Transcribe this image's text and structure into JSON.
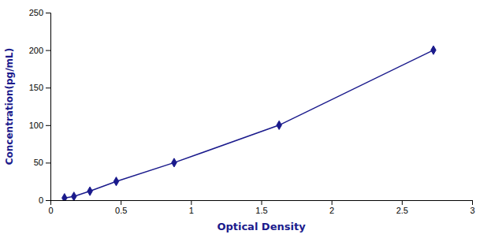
{
  "chart_data": {
    "type": "line",
    "x": [
      0.1,
      0.167,
      0.281,
      0.468,
      0.88,
      1.627,
      2.725
    ],
    "values": [
      3,
      5,
      12,
      25,
      50,
      100,
      200
    ],
    "color": "#1a1a8c",
    "marker": "diamond",
    "line_style": "solid",
    "xlabel": "Optical Density",
    "ylabel": "Concentration(pg/mL)",
    "xlim": [
      0,
      3
    ],
    "ylim": [
      0,
      250
    ],
    "xticks": [
      0,
      0.5,
      1,
      1.5,
      2,
      2.5,
      3
    ],
    "yticks": [
      0,
      50,
      100,
      150,
      200,
      250
    ],
    "grid": false
  }
}
